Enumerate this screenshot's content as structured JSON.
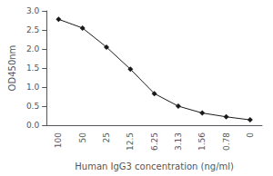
{
  "chart_data": {
    "type": "line",
    "categories": [
      "100",
      "50",
      "25",
      "12.5",
      "6.25",
      "3.13",
      "1.56",
      "0.78",
      "0"
    ],
    "values": [
      2.78,
      2.55,
      2.05,
      1.47,
      0.83,
      0.5,
      0.32,
      0.22,
      0.14
    ],
    "xlabel": "Human IgG3 concentration (ng/ml)",
    "ylabel": "OD450nm",
    "color": "#1a1a1a",
    "marker": "diamond",
    "ylim": [
      0.0,
      3.0
    ],
    "yticks": [
      {
        "value": 0.0,
        "label": "0.0"
      },
      0.5,
      {
        "value": 1.0,
        "label": "1.0"
      },
      1.5,
      {
        "value": 2.0,
        "label": "2.0"
      },
      2.5,
      {
        "value": 3.0,
        "label": "3.0"
      }
    ],
    "grid": false
  }
}
